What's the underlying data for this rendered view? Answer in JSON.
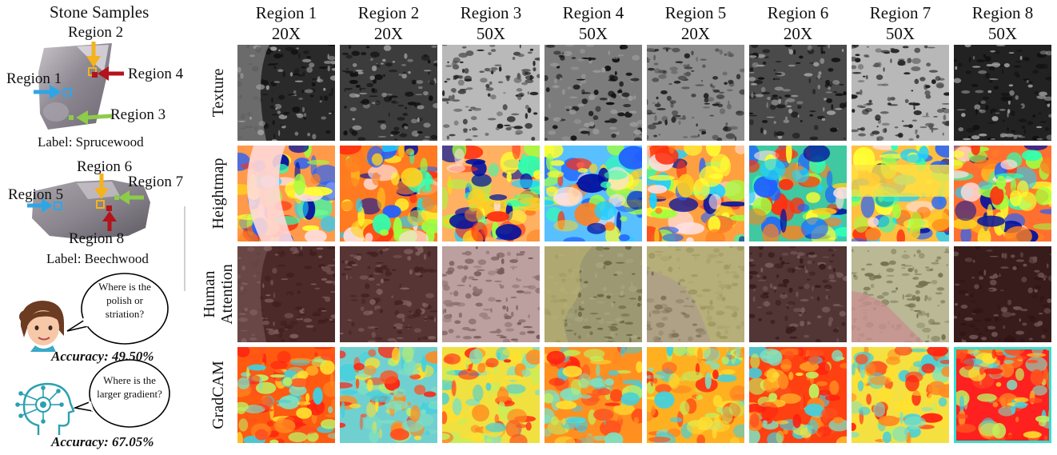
{
  "left_panel": {
    "title": "Stone Samples",
    "sample1": {
      "label": "Label: Sprucewood",
      "regions": [
        "Region 2",
        "Region 4",
        "Region 1",
        "Region 3"
      ]
    },
    "sample2": {
      "label": "Label: Beechwood",
      "regions": [
        "Region 6",
        "Region 7",
        "Region 5",
        "Region 8"
      ]
    },
    "human": {
      "question_lines": [
        "Where is the",
        "polish or",
        "striation?"
      ],
      "accuracy": "Accuracy: 49.50%"
    },
    "model": {
      "question_lines": [
        "Where is the",
        "larger gradient?"
      ],
      "accuracy": "Accuracy: 67.05%"
    },
    "colors": {
      "arrow_yellow": "#f5b21b",
      "arrow_red": "#b3131b",
      "arrow_blue": "#2ea6e6",
      "arrow_green": "#8dcb4a"
    },
    "icons": [
      "woman-face-icon",
      "ai-head-icon",
      "speech-bubble-icon"
    ]
  },
  "columns": [
    {
      "region": "Region 1",
      "mag": "20X"
    },
    {
      "region": "Region 2",
      "mag": "20X"
    },
    {
      "region": "Region 3",
      "mag": "50X"
    },
    {
      "region": "Region 4",
      "mag": "50X"
    },
    {
      "region": "Region 5",
      "mag": "20X"
    },
    {
      "region": "Region 6",
      "mag": "20X"
    },
    {
      "region": "Region 7",
      "mag": "50X"
    },
    {
      "region": "Region 8",
      "mag": "50X"
    }
  ],
  "rows": [
    {
      "label_lines": [
        "Texture"
      ],
      "kind": "texture"
    },
    {
      "label_lines": [
        "Heightmap"
      ],
      "kind": "heightmap"
    },
    {
      "label_lines": [
        "Human",
        "Attention"
      ],
      "kind": "attention"
    },
    {
      "label_lines": [
        "GradCAM"
      ],
      "kind": "gradcam"
    }
  ],
  "tile_style": {
    "texture_base": [
      "#2a2a2a",
      "#3c3c3c",
      "#b9b9b9",
      "#7c7c7c",
      "#8e8e8e",
      "#4a4a4a",
      "#b8b8b8",
      "#222222"
    ],
    "heightmap_base": [
      "#ff9a4a",
      "#ff7a20",
      "#ffb060",
      "#58c0ff",
      "#ffa040",
      "#40c8a0",
      "#ffc040",
      "#ff7030"
    ],
    "attention_fill": [
      "#6a2a2a",
      "#6e3030",
      "#c08a8a",
      "#b6ae6a",
      "#c8b080",
      "#5a2424",
      "#bcb878",
      "#4a1818"
    ],
    "gradcam_base": [
      "#ff5a10",
      "#70d0d0",
      "#f0e040",
      "#ff9020",
      "#ffb020",
      "#ff4010",
      "#f4e040",
      "#ff2020"
    ]
  }
}
